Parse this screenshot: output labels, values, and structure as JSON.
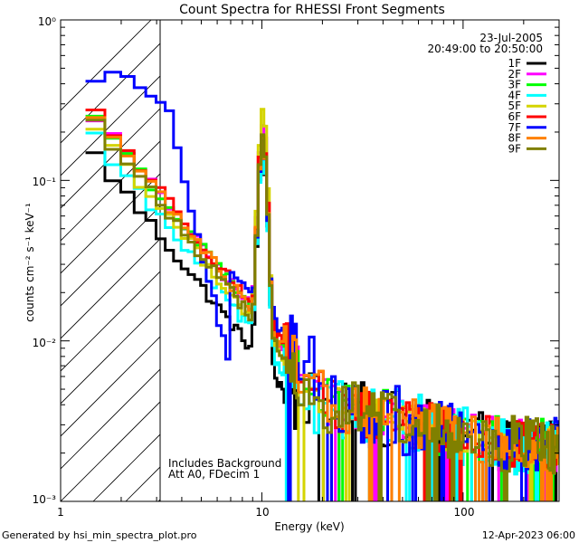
{
  "chart_data": {
    "type": "line",
    "title": "Count Spectra for RHESSI Front Segments",
    "xlabel": "Energy (keV)",
    "ylabel": "counts cm⁻² s⁻¹ keV⁻¹",
    "xscale": "log",
    "yscale": "log",
    "xlim": [
      1,
      300
    ],
    "ylim": [
      0.001,
      1
    ],
    "x_tick_labels": [
      "1",
      "10",
      "100"
    ],
    "y_tick_labels": [
      "10⁰",
      "10⁻¹",
      "10⁻²",
      "10⁻³"
    ],
    "date_label": "23-Jul-2005",
    "time_range": "20:49:00 to 20:50:00",
    "annotation_line1": "Includes Background",
    "annotation_line2": "Att A0, FDecim 1",
    "footer_left": "Generated by hsi_min_spectra_plot.pro",
    "footer_right": "12-Apr-2023 06:00",
    "hatched_region_keV": [
      1,
      3
    ],
    "series": [
      {
        "name": "1F",
        "color": "#000000",
        "base": 0.17,
        "peak": 0.9,
        "noise": 0.55
      },
      {
        "name": "2F",
        "color": "#ff00ff",
        "base": 0.3,
        "peak": 1.4,
        "noise": 0.45
      },
      {
        "name": "3F",
        "color": "#00ff00",
        "base": 0.3,
        "peak": 1.0,
        "noise": 0.5
      },
      {
        "name": "4F",
        "color": "#00ffff",
        "base": 0.22,
        "peak": 0.85,
        "noise": 0.55
      },
      {
        "name": "5F",
        "color": "#d4d400",
        "base": 0.26,
        "peak": 1.6,
        "noise": 0.35
      },
      {
        "name": "6F",
        "color": "#ff0000",
        "base": 0.32,
        "peak": 1.15,
        "noise": 0.45
      },
      {
        "name": "7F",
        "color": "#0000ff",
        "base": 0.38,
        "peak": 0.95,
        "noise": 0.6
      },
      {
        "name": "8F",
        "color": "#ff8000",
        "base": 0.3,
        "peak": 1.1,
        "noise": 0.45
      },
      {
        "name": "9F",
        "color": "#808000",
        "base": 0.27,
        "peak": 1.05,
        "noise": 0.5
      }
    ]
  }
}
